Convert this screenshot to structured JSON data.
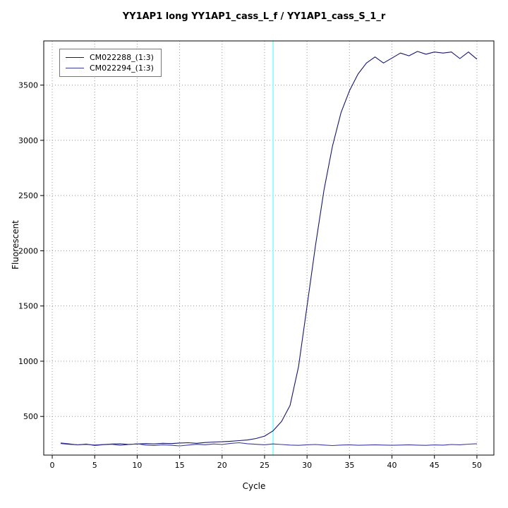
{
  "chart_data": {
    "type": "line",
    "title": "YY1AP1 long YY1AP1_cass_L_f / YY1AP1_cass_S_1_r",
    "xlabel": "Cycle",
    "ylabel": "Fluorescent",
    "xlim": [
      -1,
      52
    ],
    "ylim": [
      150,
      3900
    ],
    "x_ticks": [
      0,
      5,
      10,
      15,
      20,
      25,
      30,
      35,
      40,
      45,
      50
    ],
    "y_ticks": [
      500,
      1000,
      1500,
      2000,
      2500,
      3000,
      3500
    ],
    "grid": "dotted",
    "grid_color": "#9a9a9a",
    "threshold_line": {
      "x": 26,
      "color": "#82ffff"
    },
    "legend_position": "top-left",
    "x": [
      1,
      2,
      3,
      4,
      5,
      6,
      7,
      8,
      9,
      10,
      11,
      12,
      13,
      14,
      15,
      16,
      17,
      18,
      19,
      20,
      21,
      22,
      23,
      24,
      25,
      26,
      27,
      28,
      29,
      30,
      31,
      32,
      33,
      34,
      35,
      36,
      37,
      38,
      39,
      40,
      41,
      42,
      43,
      44,
      45,
      46,
      47,
      48,
      49,
      50
    ],
    "series": [
      {
        "name": "CM022288_(1:3)",
        "color": "#16166e",
        "values": [
          255,
          248,
          243,
          247,
          241,
          246,
          250,
          252,
          247,
          250,
          254,
          251,
          257,
          254,
          259,
          262,
          257,
          264,
          268,
          271,
          275,
          281,
          287,
          300,
          322,
          370,
          455,
          600,
          950,
          1500,
          2050,
          2550,
          2950,
          3250,
          3450,
          3600,
          3700,
          3755,
          3700,
          3745,
          3790,
          3765,
          3805,
          3780,
          3800,
          3790,
          3800,
          3740,
          3800,
          3735
        ]
      },
      {
        "name": "CM022294_(1:3)",
        "color": "#3b3b9e",
        "values": [
          260,
          252,
          242,
          250,
          237,
          244,
          248,
          239,
          246,
          252,
          241,
          236,
          243,
          239,
          233,
          241,
          248,
          243,
          251,
          246,
          256,
          262,
          253,
          248,
          243,
          251,
          246,
          241,
          238,
          243,
          246,
          241,
          236,
          241,
          243,
          239,
          241,
          243,
          241,
          239,
          241,
          243,
          240,
          238,
          242,
          240,
          246,
          243,
          249,
          253
        ]
      }
    ]
  }
}
